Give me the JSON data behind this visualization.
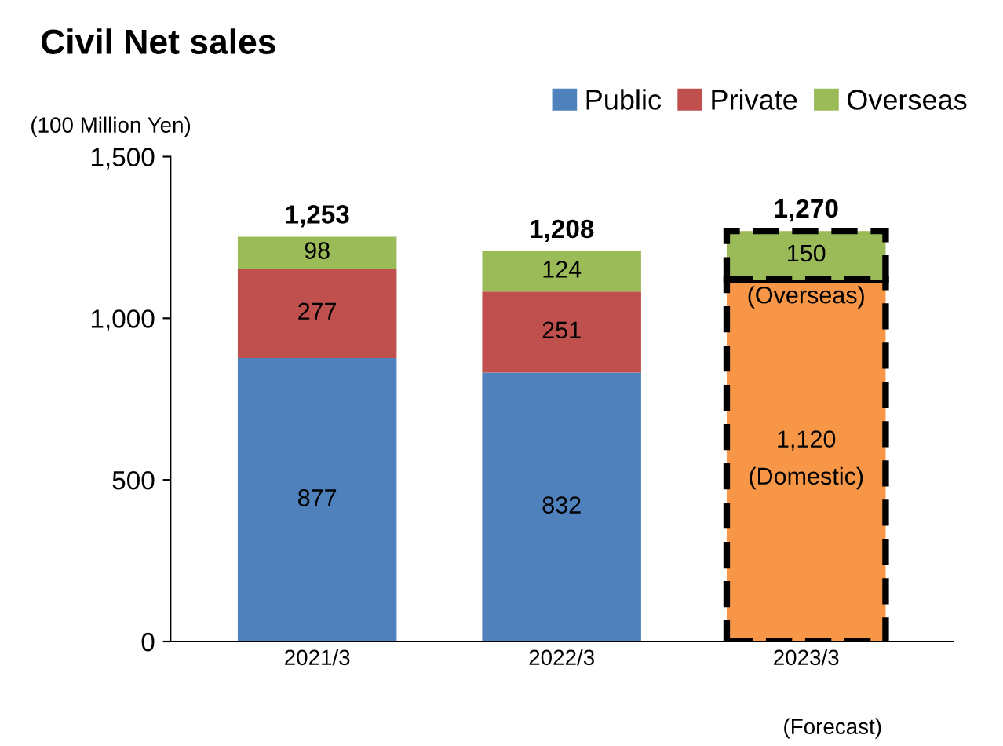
{
  "chart_data": {
    "type": "bar",
    "stacked": true,
    "title": "Civil Net sales",
    "ylabel": "(100 Million Yen)",
    "categories": [
      "2021/3",
      "2022/3",
      "2023/3"
    ],
    "series": [
      {
        "name": "Public",
        "color": "#4f81bd",
        "values": [
          877,
          832,
          null
        ],
        "value_labels": [
          "877",
          "832",
          null
        ]
      },
      {
        "name": "Private",
        "color": "#c0504d",
        "values": [
          277,
          251,
          null
        ],
        "value_labels": [
          "277",
          "251",
          null
        ]
      },
      {
        "color": "#f79646",
        "values": [
          null,
          null,
          1120
        ],
        "value_labels": [
          null,
          null,
          "1,120"
        ],
        "line_style": "dashed"
      },
      {
        "name": "Overseas",
        "color": "#9bbb59",
        "values": [
          98,
          124,
          null
        ],
        "value_labels": [
          "98",
          "124",
          null
        ]
      },
      {
        "color": "#9bbb59",
        "values": [
          null,
          null,
          150
        ],
        "value_labels": [
          null,
          null,
          "150"
        ],
        "line_style": "dashed"
      }
    ],
    "totals": [
      "1,253",
      "1,208",
      "1,270"
    ],
    "annotations": [
      "(Domestic)",
      "(Overseas)",
      "(Forecast)"
    ],
    "ylim": [
      0,
      1500
    ],
    "yticks": [
      0,
      500,
      {
        "value": 1000,
        "label": "1,000"
      },
      {
        "value": 1500,
        "label": "1,500"
      }
    ],
    "grid": false,
    "legend": "top right"
  }
}
